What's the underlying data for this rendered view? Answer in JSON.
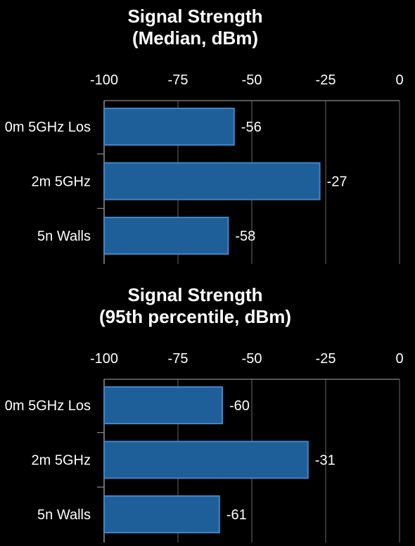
{
  "chart_data": [
    {
      "type": "bar",
      "orientation": "horizontal",
      "title": [
        "Signal Strength",
        "(Median, dBm)"
      ],
      "categories": [
        "0m 5GHz Los",
        "2m 5GHz",
        "5n Walls"
      ],
      "values": [
        -56,
        -27,
        -58
      ],
      "value_labels": [
        "-56",
        "-27",
        "-58"
      ],
      "xlim": [
        -100,
        0
      ],
      "x_ticks": [
        -100,
        -75,
        -50,
        -25,
        0
      ],
      "x_tick_labels": [
        "-100",
        "-75",
        "-50",
        "-25",
        "0"
      ],
      "x_axis_position": "top",
      "grid": true,
      "bar_color": "#1f5f99",
      "bar_edge_color": "#3f86c8",
      "background": "#000000"
    },
    {
      "type": "bar",
      "orientation": "horizontal",
      "title": [
        "Signal Strength",
        "(95th percentile, dBm)"
      ],
      "categories": [
        "0m 5GHz Los",
        "2m 5GHz",
        "5n Walls"
      ],
      "values": [
        -60,
        -31,
        -61
      ],
      "value_labels": [
        "-60",
        "-31",
        "-61"
      ],
      "xlim": [
        -100,
        0
      ],
      "x_ticks": [
        -100,
        -75,
        -50,
        -25,
        0
      ],
      "x_tick_labels": [
        "-100",
        "-75",
        "-50",
        "-25",
        "0"
      ],
      "x_axis_position": "top",
      "grid": true,
      "bar_color": "#1f5f99",
      "bar_edge_color": "#3f86c8",
      "background": "#000000"
    }
  ]
}
